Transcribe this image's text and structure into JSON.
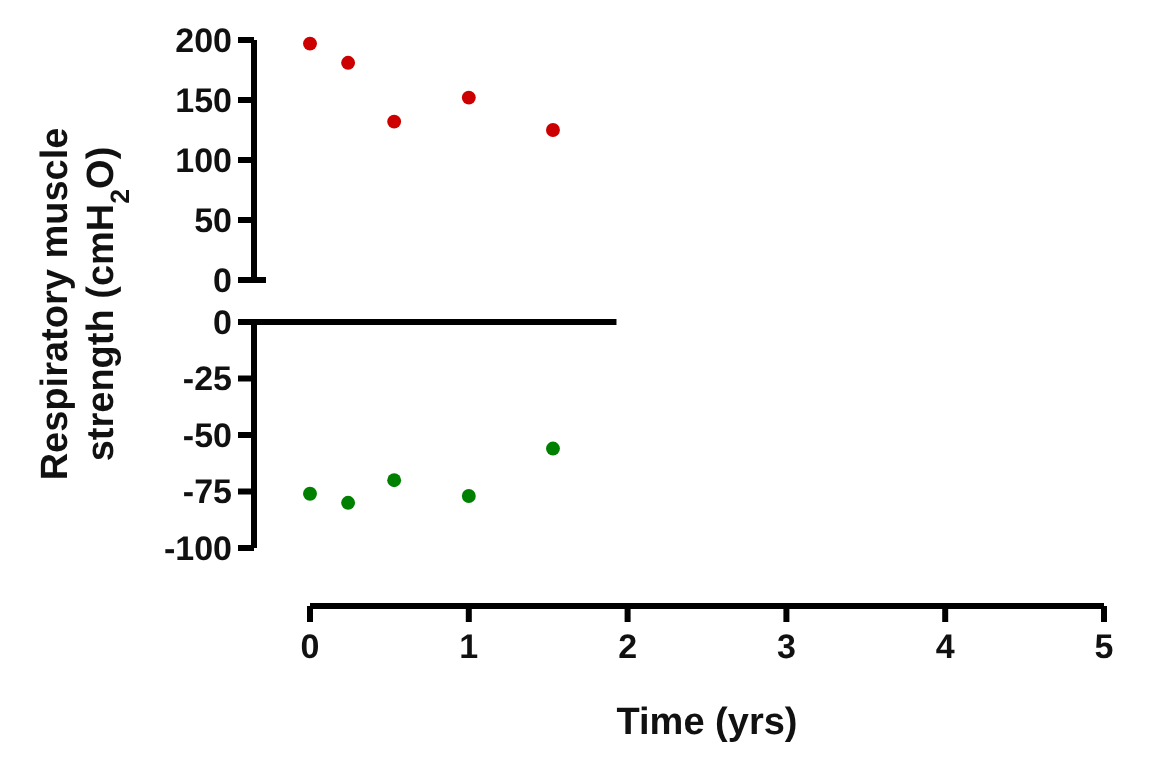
{
  "chart_data": [
    {
      "type": "scatter",
      "ylabel": "Respiratory muscle\nstrength  (cmH$_{2}$O)",
      "x": [
        0,
        0.24,
        0.53,
        1,
        1.53
      ],
      "xlim": [
        0,
        5
      ],
      "ylim": [
        0,
        200
      ],
      "yticks": [
        0,
        50,
        100,
        150,
        200
      ],
      "tick_labels": "y",
      "marker": "circle",
      "grid": false,
      "series": [
        {
          "color": "#cc0000",
          "values": [
            197,
            181,
            132,
            152,
            125
          ]
        }
      ]
    },
    {
      "type": "scatter",
      "xlabel": "Time (yrs)",
      "x": [
        0,
        0.24,
        0.53,
        1,
        1.53
      ],
      "xlim": [
        0,
        5
      ],
      "xticks": [
        0,
        1,
        2,
        3,
        4,
        5
      ],
      "ylim": [
        -100,
        0
      ],
      "yticks": [
        -100,
        -75,
        -50,
        -25,
        0
      ],
      "marker": "circle",
      "grid": false,
      "ref_lines": [
        {
          "axis": "y",
          "value": 0,
          "color": "#000000"
        }
      ],
      "series": [
        {
          "color": "#008000",
          "values": [
            -76,
            -80,
            -70,
            -77,
            -56
          ]
        }
      ]
    }
  ]
}
